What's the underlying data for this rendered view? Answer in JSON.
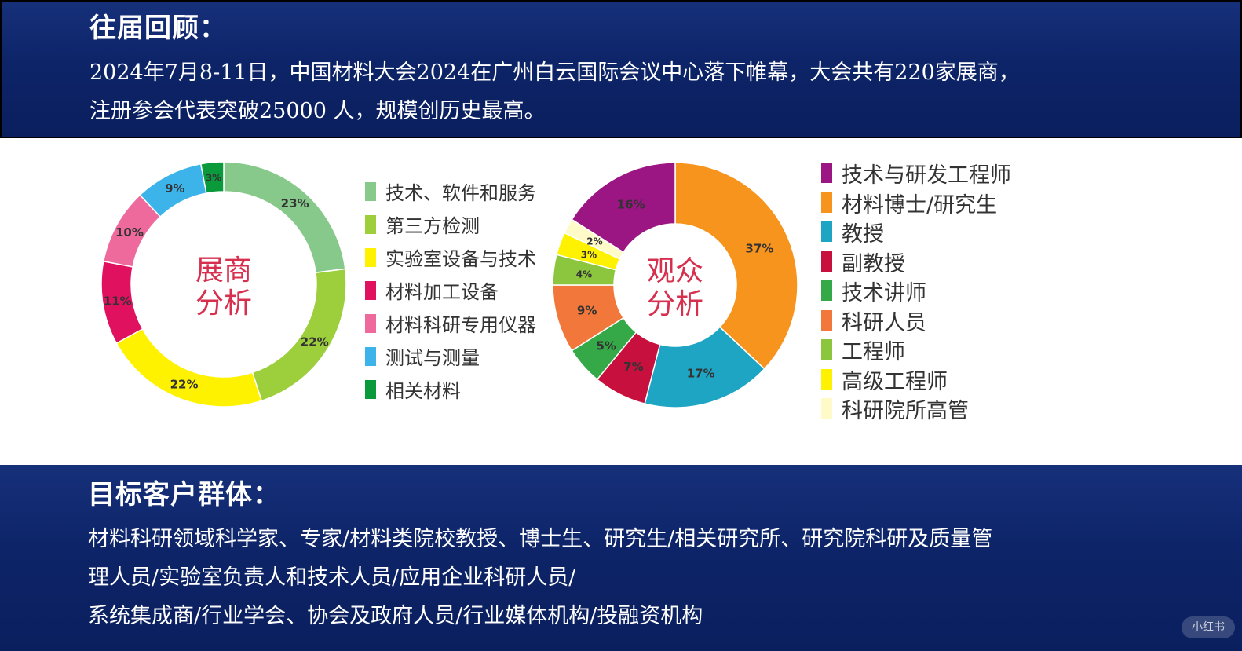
{
  "intro": {
    "heading": "往届回顾：",
    "lines": [
      "2024年7月8-11日，中国材料大会2024在广州白云国际会议中心落下帷幕，大会共有220家展商，",
      "注册参会代表突破25000 人，规模创历史最高。"
    ]
  },
  "target": {
    "heading": "目标客户群体：",
    "lines": [
      "材料科研领域科学家、专家/材料类院校教授、博士生、研究生/相关研究所、研究院科研及质量管",
      "理人员/实验室负责人和技术人员/应用企业科研人员/",
      "系统集成商/行业学会、协会及政府人员/行业媒体机构/投融资机构"
    ]
  },
  "watermark": "小红书",
  "chart_data": [
    {
      "type": "pie",
      "title": "展商分析",
      "series": [
        {
          "label": "技术、软件和服务",
          "value": 23,
          "color": "#86c98a"
        },
        {
          "label": "第三方检测",
          "value": 22,
          "color": "#9ccf3b"
        },
        {
          "label": "实验室设备与技术",
          "value": 22,
          "color": "#fff200"
        },
        {
          "label": "材料加工设备",
          "value": 11,
          "color": "#e0115f"
        },
        {
          "label": "材料科研专用仪器",
          "value": 10,
          "color": "#ee6a9c"
        },
        {
          "label": "测试与测量",
          "value": 9,
          "color": "#3cb4ea"
        },
        {
          "label": "相关材料",
          "value": 3,
          "color": "#0a9a3c"
        }
      ],
      "legend_placement": "right"
    },
    {
      "type": "pie",
      "title": "观众分析",
      "series": [
        {
          "label": "技术与研发工程师",
          "value": 16,
          "color": "#9b1583"
        },
        {
          "label": "材料博士/研究生",
          "value": 37,
          "color": "#f7941d"
        },
        {
          "label": "教授",
          "value": 17,
          "color": "#1fa5c4"
        },
        {
          "label": "副教授",
          "value": 7,
          "color": "#c8103e"
        },
        {
          "label": "技术讲师",
          "value": 5,
          "color": "#35a848"
        },
        {
          "label": "科研人员",
          "value": 9,
          "color": "#f1773a"
        },
        {
          "label": "工程师",
          "value": 4,
          "color": "#8cc63e"
        },
        {
          "label": "高级工程师",
          "value": 3,
          "color": "#fff200"
        },
        {
          "label": "科研院所高管",
          "value": 2,
          "color": "#fffbc8"
        }
      ],
      "draw_order": [
        "材料博士/研究生",
        "教授",
        "副教授",
        "技术讲师",
        "科研人员",
        "工程师",
        "高级工程师",
        "科研院所高管",
        "技术与研发工程师"
      ],
      "legend_placement": "right"
    }
  ]
}
